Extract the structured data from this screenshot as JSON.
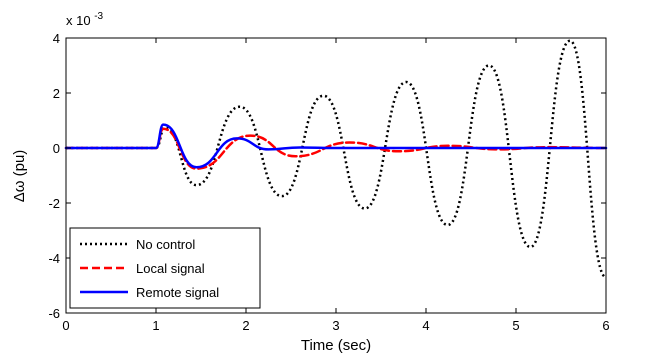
{
  "chart_data": {
    "type": "line",
    "title": "",
    "xlabel": "Time (sec)",
    "ylabel": "Δω (pu)",
    "y_multiplier_label": "x 10",
    "y_multiplier_exponent": "-3",
    "xlim": [
      0,
      6
    ],
    "ylim": [
      -6,
      4
    ],
    "x_ticks": [
      0,
      1,
      2,
      3,
      4,
      5,
      6
    ],
    "y_ticks": [
      -6,
      -4,
      -2,
      0,
      2,
      4
    ],
    "x_tick_labels": [
      "0",
      "1",
      "2",
      "3",
      "4",
      "5",
      "6"
    ],
    "y_tick_labels": [
      "-6",
      "-4",
      "-2",
      "0",
      "2",
      "4"
    ],
    "grid": false,
    "legend_position": "bottom-left",
    "series": [
      {
        "name": "No control",
        "color": "#000000",
        "style": "dotted",
        "x": [
          0,
          1.0,
          1.1,
          1.45,
          1.93,
          2.4,
          2.86,
          3.32,
          3.78,
          4.24,
          4.7,
          5.16,
          5.6,
          6.0
        ],
        "y": [
          0,
          0,
          0.75,
          -1.35,
          1.5,
          -1.75,
          1.9,
          -2.2,
          2.4,
          -2.8,
          3.0,
          -3.6,
          3.9,
          -4.7
        ]
      },
      {
        "name": "Local signal",
        "color": "#ff0000",
        "style": "dashed",
        "x": [
          0,
          1.0,
          1.08,
          1.45,
          2.05,
          2.55,
          3.15,
          3.7,
          4.25,
          4.8,
          5.35,
          6.0
        ],
        "y": [
          0,
          0,
          0.7,
          -0.75,
          0.45,
          -0.3,
          0.2,
          -0.12,
          0.08,
          -0.05,
          0.03,
          0
        ]
      },
      {
        "name": "Remote signal",
        "color": "#0000ff",
        "style": "solid",
        "x": [
          0,
          1.0,
          1.08,
          1.45,
          1.9,
          2.25,
          2.6,
          3.0,
          6.0
        ],
        "y": [
          0,
          0,
          0.85,
          -0.7,
          0.35,
          -0.05,
          0.02,
          0,
          0
        ]
      }
    ]
  }
}
